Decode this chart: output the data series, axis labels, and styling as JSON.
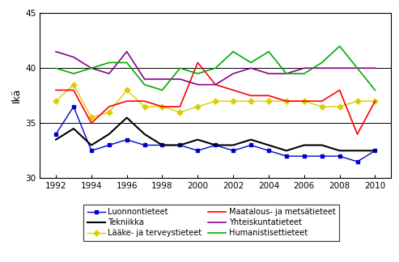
{
  "years": [
    1992,
    1993,
    1994,
    1995,
    1996,
    1997,
    1998,
    1999,
    2000,
    2001,
    2002,
    2003,
    2004,
    2005,
    2006,
    2007,
    2008,
    2009,
    2010
  ],
  "luonnontieteet": [
    34.0,
    36.5,
    32.5,
    33.0,
    33.5,
    33.0,
    33.0,
    33.0,
    32.5,
    33.0,
    32.5,
    33.0,
    32.5,
    32.0,
    32.0,
    32.0,
    32.0,
    31.5,
    32.5
  ],
  "tekniikka": [
    33.5,
    34.5,
    33.0,
    34.0,
    35.5,
    34.0,
    33.0,
    33.0,
    33.5,
    33.0,
    33.0,
    33.5,
    33.0,
    32.5,
    33.0,
    33.0,
    32.5,
    32.5,
    32.5
  ],
  "laake": [
    37.0,
    38.5,
    35.5,
    36.0,
    38.0,
    36.5,
    36.5,
    36.0,
    36.5,
    37.0,
    37.0,
    37.0,
    37.0,
    37.0,
    37.0,
    36.5,
    36.5,
    37.0,
    37.0
  ],
  "maatalous": [
    38.0,
    38.0,
    35.0,
    36.5,
    37.0,
    37.0,
    36.5,
    36.5,
    40.5,
    38.5,
    38.0,
    37.5,
    37.5,
    37.0,
    37.0,
    37.0,
    38.0,
    34.0,
    37.0
  ],
  "yhteiskunta": [
    41.5,
    41.0,
    40.0,
    39.5,
    41.5,
    39.0,
    39.0,
    39.0,
    38.5,
    38.5,
    39.5,
    40.0,
    39.5,
    39.5,
    40.0,
    40.0,
    40.0,
    40.0,
    40.0
  ],
  "humanistiset": [
    40.0,
    39.5,
    40.0,
    40.5,
    40.5,
    38.5,
    38.0,
    40.0,
    39.5,
    40.0,
    41.5,
    40.5,
    41.5,
    39.5,
    39.5,
    40.5,
    42.0,
    40.0,
    38.0
  ],
  "ylabel": "Ikä",
  "ylim": [
    30,
    45
  ],
  "yticks": [
    30,
    35,
    40,
    45
  ],
  "xticks": [
    1992,
    1994,
    1996,
    1998,
    2000,
    2002,
    2004,
    2006,
    2008,
    2010
  ],
  "color_luonnontieteet": "#0000CC",
  "color_tekniikka": "#000000",
  "color_laake": "#DDCC00",
  "color_maatalous": "#FF0000",
  "color_yhteiskunta": "#880088",
  "color_humanistiset": "#00AA00",
  "legend_luonnontieteet": "Luonnontieteet",
  "legend_tekniikka": "Tekniikka",
  "legend_laake": "Lääke- ja terveystieteet",
  "legend_maatalous": "Maatalous- ja metsätieteet",
  "legend_yhteiskunta": "Yhteiskuntatieteet",
  "legend_humanistiset": "Humanistisettieteet"
}
